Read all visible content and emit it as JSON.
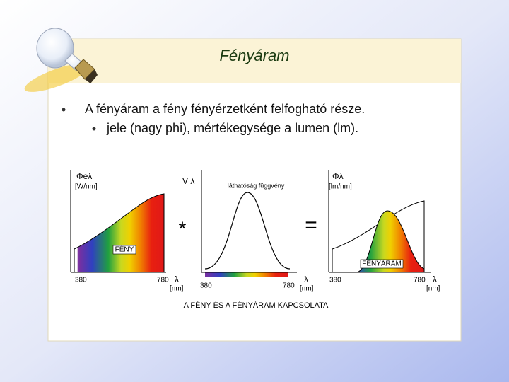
{
  "title": "Fényáram",
  "bullets": [
    {
      "text": "A fényáram a fény fényérzetként felfogható része.",
      "level": 1
    },
    {
      "text": "jele (nagy phi), mértékegysége a lumen (lm).",
      "level": 2
    }
  ],
  "figure": {
    "caption": "A FÉNY ÉS A FÉNYÁRAM KAPCSOLATA",
    "operators": [
      "*",
      "="
    ],
    "panels": [
      {
        "symbol": "Φeλ",
        "unit": "[W/nm]",
        "label": "FÉNY",
        "x_start": 380,
        "x_end": 780,
        "x_symbol": "λ",
        "x_unit": "[nm]"
      },
      {
        "symbol": "V λ",
        "label": "láthatóság függvény",
        "x_start": 380,
        "x_end": 780,
        "x_symbol": "λ",
        "x_unit": "[nm]"
      },
      {
        "symbol": "Φλ",
        "unit": "[lm/nm]",
        "label": "FÉNYÁRAM",
        "x_start": 380,
        "x_end": 780,
        "x_symbol": "λ",
        "x_unit": "[nm]"
      }
    ]
  }
}
